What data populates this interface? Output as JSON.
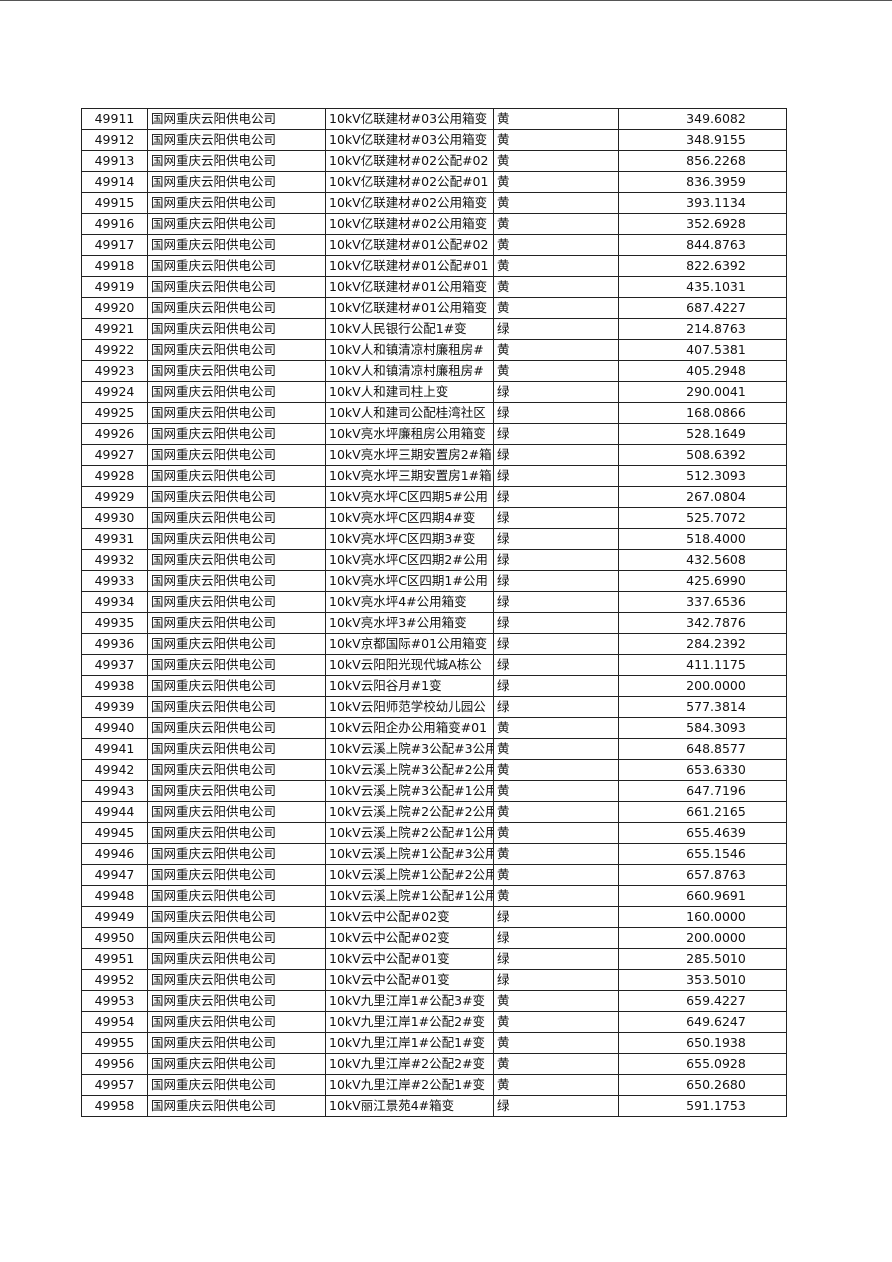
{
  "table": {
    "rows": [
      [
        "49911",
        "国网重庆云阳供电公司",
        "10kV亿联建材#03公用箱变",
        "黄",
        "349.6082"
      ],
      [
        "49912",
        "国网重庆云阳供电公司",
        "10kV亿联建材#03公用箱变",
        "黄",
        "348.9155"
      ],
      [
        "49913",
        "国网重庆云阳供电公司",
        "10kV亿联建材#02公配#02",
        "黄",
        "856.2268"
      ],
      [
        "49914",
        "国网重庆云阳供电公司",
        "10kV亿联建材#02公配#01",
        "黄",
        "836.3959"
      ],
      [
        "49915",
        "国网重庆云阳供电公司",
        "10kV亿联建材#02公用箱变",
        "黄",
        "393.1134"
      ],
      [
        "49916",
        "国网重庆云阳供电公司",
        "10kV亿联建材#02公用箱变",
        "黄",
        "352.6928"
      ],
      [
        "49917",
        "国网重庆云阳供电公司",
        "10kV亿联建材#01公配#02",
        "黄",
        "844.8763"
      ],
      [
        "49918",
        "国网重庆云阳供电公司",
        "10kV亿联建材#01公配#01",
        "黄",
        "822.6392"
      ],
      [
        "49919",
        "国网重庆云阳供电公司",
        "10kV亿联建材#01公用箱变",
        "黄",
        "435.1031"
      ],
      [
        "49920",
        "国网重庆云阳供电公司",
        "10kV亿联建材#01公用箱变",
        "黄",
        "687.4227"
      ],
      [
        "49921",
        "国网重庆云阳供电公司",
        "10kV人民银行公配1#变",
        "绿",
        "214.8763"
      ],
      [
        "49922",
        "国网重庆云阳供电公司",
        "10kV人和镇清凉村廉租房#",
        "黄",
        "407.5381"
      ],
      [
        "49923",
        "国网重庆云阳供电公司",
        "10kV人和镇清凉村廉租房#",
        "黄",
        "405.2948"
      ],
      [
        "49924",
        "国网重庆云阳供电公司",
        "10kV人和建司柱上变",
        "绿",
        "290.0041"
      ],
      [
        "49925",
        "国网重庆云阳供电公司",
        "10kV人和建司公配桂湾社区",
        "绿",
        "168.0866"
      ],
      [
        "49926",
        "国网重庆云阳供电公司",
        "10kV亮水坪廉租房公用箱变",
        "绿",
        "528.1649"
      ],
      [
        "49927",
        "国网重庆云阳供电公司",
        "10kV亮水坪三期安置房2#箱",
        "绿",
        "508.6392"
      ],
      [
        "49928",
        "国网重庆云阳供电公司",
        "10kV亮水坪三期安置房1#箱",
        "绿",
        "512.3093"
      ],
      [
        "49929",
        "国网重庆云阳供电公司",
        "10kV亮水坪C区四期5#公用",
        "绿",
        "267.0804"
      ],
      [
        "49930",
        "国网重庆云阳供电公司",
        "10kV亮水坪C区四期4#变",
        "绿",
        "525.7072"
      ],
      [
        "49931",
        "国网重庆云阳供电公司",
        "10kV亮水坪C区四期3#变",
        "绿",
        "518.4000"
      ],
      [
        "49932",
        "国网重庆云阳供电公司",
        "10kV亮水坪C区四期2#公用",
        "绿",
        "432.5608"
      ],
      [
        "49933",
        "国网重庆云阳供电公司",
        "10kV亮水坪C区四期1#公用",
        "绿",
        "425.6990"
      ],
      [
        "49934",
        "国网重庆云阳供电公司",
        "10kV亮水坪4#公用箱变",
        "绿",
        "337.6536"
      ],
      [
        "49935",
        "国网重庆云阳供电公司",
        "10kV亮水坪3#公用箱变",
        "绿",
        "342.7876"
      ],
      [
        "49936",
        "国网重庆云阳供电公司",
        "10kV京都国际#01公用箱变",
        "绿",
        "284.2392"
      ],
      [
        "49937",
        "国网重庆云阳供电公司",
        "10kV云阳阳光现代城A栋公",
        "绿",
        "411.1175"
      ],
      [
        "49938",
        "国网重庆云阳供电公司",
        "10kV云阳谷月#1变",
        "绿",
        "200.0000"
      ],
      [
        "49939",
        "国网重庆云阳供电公司",
        "10kV云阳师范学校幼儿园公",
        "绿",
        "577.3814"
      ],
      [
        "49940",
        "国网重庆云阳供电公司",
        "10kV云阳企办公用箱变#01",
        "黄",
        "584.3093"
      ],
      [
        "49941",
        "国网重庆云阳供电公司",
        "10kV云溪上院#3公配#3公用",
        "黄",
        "648.8577"
      ],
      [
        "49942",
        "国网重庆云阳供电公司",
        "10kV云溪上院#3公配#2公用",
        "黄",
        "653.6330"
      ],
      [
        "49943",
        "国网重庆云阳供电公司",
        "10kV云溪上院#3公配#1公用",
        "黄",
        "647.7196"
      ],
      [
        "49944",
        "国网重庆云阳供电公司",
        "10kV云溪上院#2公配#2公用",
        "黄",
        "661.2165"
      ],
      [
        "49945",
        "国网重庆云阳供电公司",
        "10kV云溪上院#2公配#1公用",
        "黄",
        "655.4639"
      ],
      [
        "49946",
        "国网重庆云阳供电公司",
        "10kV云溪上院#1公配#3公用",
        "黄",
        "655.1546"
      ],
      [
        "49947",
        "国网重庆云阳供电公司",
        "10kV云溪上院#1公配#2公用",
        "黄",
        "657.8763"
      ],
      [
        "49948",
        "国网重庆云阳供电公司",
        "10kV云溪上院#1公配#1公用",
        "黄",
        "660.9691"
      ],
      [
        "49949",
        "国网重庆云阳供电公司",
        "10kV云中公配#02变",
        "绿",
        "160.0000"
      ],
      [
        "49950",
        "国网重庆云阳供电公司",
        "10kV云中公配#02变",
        "绿",
        "200.0000"
      ],
      [
        "49951",
        "国网重庆云阳供电公司",
        "10kV云中公配#01变",
        "绿",
        "285.5010"
      ],
      [
        "49952",
        "国网重庆云阳供电公司",
        "10kV云中公配#01变",
        "绿",
        "353.5010"
      ],
      [
        "49953",
        "国网重庆云阳供电公司",
        "10kV九里江岸1#公配3#变",
        "黄",
        "659.4227"
      ],
      [
        "49954",
        "国网重庆云阳供电公司",
        "10kV九里江岸1#公配2#变",
        "黄",
        "649.6247"
      ],
      [
        "49955",
        "国网重庆云阳供电公司",
        "10kV九里江岸1#公配1#变",
        "黄",
        "650.1938"
      ],
      [
        "49956",
        "国网重庆云阳供电公司",
        "10kV九里江岸#2公配2#变",
        "黄",
        "655.0928"
      ],
      [
        "49957",
        "国网重庆云阳供电公司",
        "10kV九里江岸#2公配1#变",
        "黄",
        "650.2680"
      ],
      [
        "49958",
        "国网重庆云阳供电公司",
        "10kV丽江景苑4#箱变",
        "绿",
        "591.1753"
      ]
    ]
  }
}
